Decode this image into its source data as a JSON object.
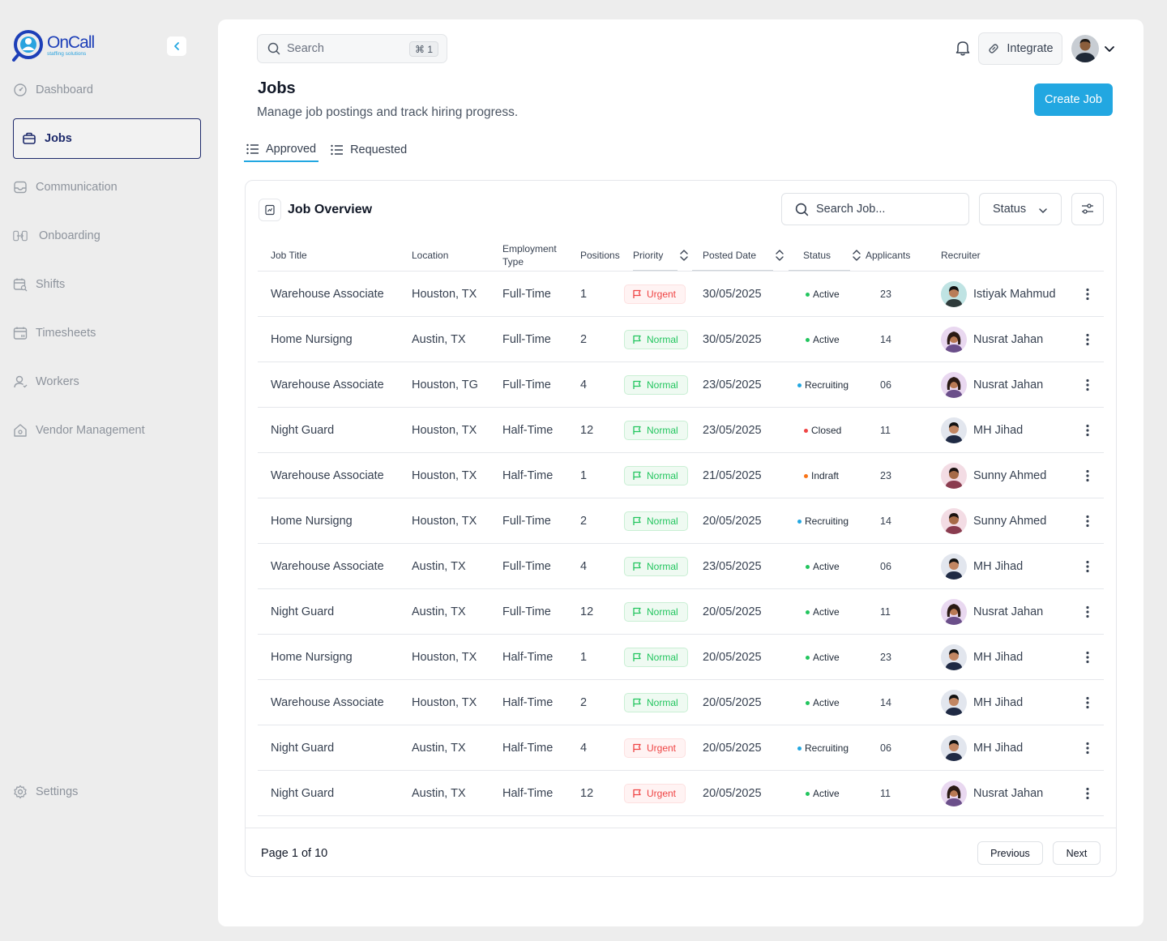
{
  "brand": {
    "name": "OnCall",
    "tagline": "staffing solutions",
    "primary": "#1d3fb8",
    "accent": "#22a7e1"
  },
  "sidebar": {
    "items": [
      {
        "label": "Dashboard",
        "icon": "dashboard-icon",
        "active": false
      },
      {
        "label": "Jobs",
        "icon": "briefcase-icon",
        "active": true
      },
      {
        "label": "Communication",
        "icon": "inbox-icon",
        "active": false
      },
      {
        "label": "Onboarding",
        "icon": "login-icon",
        "active": false
      },
      {
        "label": "Shifts",
        "icon": "calendar-search-icon",
        "active": false
      },
      {
        "label": "Timesheets",
        "icon": "calendar-icon",
        "active": false
      },
      {
        "label": "Workers",
        "icon": "user-icon",
        "active": false
      },
      {
        "label": "Vendor Management",
        "icon": "home-icon",
        "active": false
      }
    ],
    "settings_label": "Settings"
  },
  "topbar": {
    "search_placeholder": "Search",
    "search_shortcut": "⌘ 1",
    "integrate_label": "Integrate"
  },
  "page": {
    "title": "Jobs",
    "subtitle": "Manage job postings and track hiring progress.",
    "create_label": "Create Job"
  },
  "tabs": [
    {
      "label": "Approved",
      "active": true
    },
    {
      "label": "Requested",
      "active": false
    }
  ],
  "card": {
    "title": "Job Overview",
    "search_placeholder": "Search Job...",
    "status_label": "Status",
    "columns": [
      "Job Title",
      "Location",
      "Employment Type",
      "Positions",
      "Priority",
      "Posted Date",
      "Status",
      "Applicants",
      "Recruiter"
    ],
    "rows": [
      {
        "title": "Warehouse Associate",
        "location": "Houston, TX",
        "type": "Full-Time",
        "positions": "1",
        "priority": "Urgent",
        "date": "30/05/2025",
        "status": "Active",
        "applicants": "23",
        "recruiter": "Istiyak Mahmud"
      },
      {
        "title": "Home Nursigng",
        "location": "Austin, TX",
        "type": "Full-Time",
        "positions": "2",
        "priority": "Normal",
        "date": "30/05/2025",
        "status": "Active",
        "applicants": "14",
        "recruiter": "Nusrat Jahan"
      },
      {
        "title": "Warehouse Associate",
        "location": "Houston, TG",
        "type": "Full-Time",
        "positions": "4",
        "priority": "Normal",
        "date": "23/05/2025",
        "status": "Recruiting",
        "applicants": "06",
        "recruiter": "Nusrat Jahan"
      },
      {
        "title": "Night Guard",
        "location": "Houston, TX",
        "type": "Half-Time",
        "positions": "12",
        "priority": "Normal",
        "date": "23/05/2025",
        "status": "Closed",
        "applicants": "11",
        "recruiter": "MH Jihad"
      },
      {
        "title": "Warehouse Associate",
        "location": "Houston, TX",
        "type": "Half-Time",
        "positions": "1",
        "priority": "Normal",
        "date": "21/05/2025",
        "status": "Indraft",
        "applicants": "23",
        "recruiter": "Sunny Ahmed"
      },
      {
        "title": "Home Nursigng",
        "location": "Houston, TX",
        "type": "Full-Time",
        "positions": "2",
        "priority": "Normal",
        "date": "20/05/2025",
        "status": "Recruiting",
        "applicants": "14",
        "recruiter": "Sunny Ahmed"
      },
      {
        "title": "Warehouse Associate",
        "location": "Austin, TX",
        "type": "Full-Time",
        "positions": "4",
        "priority": "Normal",
        "date": "23/05/2025",
        "status": "Active",
        "applicants": "06",
        "recruiter": "MH Jihad"
      },
      {
        "title": "Night Guard",
        "location": "Austin, TX",
        "type": "Full-Time",
        "positions": "12",
        "priority": "Normal",
        "date": "20/05/2025",
        "status": "Active",
        "applicants": "11",
        "recruiter": "Nusrat Jahan"
      },
      {
        "title": "Home Nursigng",
        "location": "Houston, TX",
        "type": "Half-Time",
        "positions": "1",
        "priority": "Normal",
        "date": "20/05/2025",
        "status": "Active",
        "applicants": "23",
        "recruiter": "MH Jihad"
      },
      {
        "title": "Warehouse Associate",
        "location": "Houston, TX",
        "type": "Half-Time",
        "positions": "2",
        "priority": "Normal",
        "date": "20/05/2025",
        "status": "Active",
        "applicants": "14",
        "recruiter": "MH Jihad"
      },
      {
        "title": "Night Guard",
        "location": "Austin, TX",
        "type": "Half-Time",
        "positions": "4",
        "priority": "Urgent",
        "date": "20/05/2025",
        "status": "Recruiting",
        "applicants": "06",
        "recruiter": "MH Jihad"
      },
      {
        "title": "Night Guard",
        "location": "Austin, TX",
        "type": "Half-Time",
        "positions": "12",
        "priority": "Urgent",
        "date": "20/05/2025",
        "status": "Active",
        "applicants": "11",
        "recruiter": "Nusrat Jahan"
      }
    ],
    "status_colors": {
      "Active": "#22c55e",
      "Recruiting": "#22a7e1",
      "Closed": "#ef4444",
      "Indraft": "#f97316"
    }
  },
  "pagination": {
    "label": "Page 1 of 10",
    "prev": "Previous",
    "next": "Next"
  }
}
